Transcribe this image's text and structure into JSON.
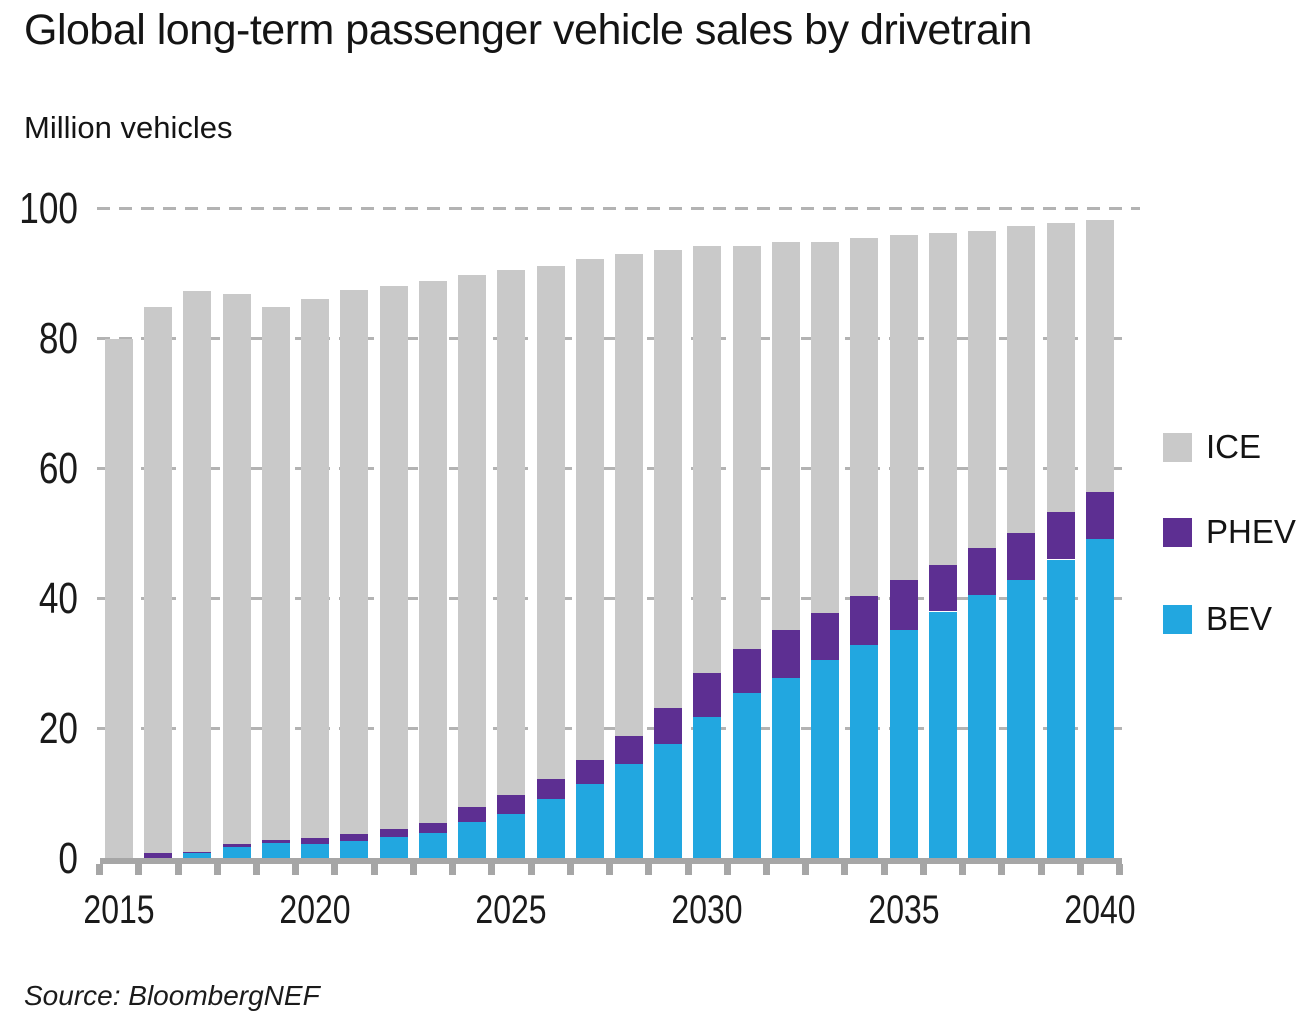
{
  "header": {
    "title": "Global long-term passenger vehicle sales by drivetrain",
    "unit_label": "Million vehicles"
  },
  "source": "Source: BloombergNEF",
  "chart_data": {
    "type": "bar",
    "subtype": "stacked-vertical",
    "title": "Global long-term passenger vehicle sales by drivetrain",
    "ylabel": "Million vehicles",
    "xlabel": "",
    "ylim": [
      0,
      100
    ],
    "yticks": [
      0,
      20,
      40,
      60,
      80,
      100
    ],
    "grid": "dashed-horizontal",
    "legend_position": "right",
    "categories": [
      2015,
      2016,
      2017,
      2018,
      2019,
      2020,
      2021,
      2022,
      2023,
      2024,
      2025,
      2026,
      2027,
      2028,
      2029,
      2030,
      2031,
      2032,
      2033,
      2034,
      2035,
      2036,
      2037,
      2038,
      2039,
      2040
    ],
    "xtick_labels": [
      2015,
      2020,
      2025,
      2030,
      2035,
      2040
    ],
    "series": [
      {
        "name": "BEV",
        "color": "#22a7e0",
        "stack_order": 0,
        "values": [
          0,
          0.1,
          0.9,
          1.8,
          2.4,
          2.3,
          2.75,
          3.3,
          3.9,
          5.6,
          6.9,
          9.1,
          11.5,
          14.5,
          17.6,
          21.8,
          25.4,
          27.8,
          30.6,
          32.8,
          35.2,
          38.0,
          40.5,
          42.8,
          46.0,
          49.1
        ]
      },
      {
        "name": "PHEV",
        "color": "#5d2f92",
        "stack_order": 1,
        "values": [
          0,
          0.75,
          0.15,
          0.45,
          0.5,
          0.85,
          1.0,
          1.2,
          1.5,
          2.3,
          2.8,
          3.1,
          3.6,
          4.4,
          5.5,
          6.7,
          6.8,
          7.4,
          7.2,
          7.6,
          7.6,
          7.2,
          7.2,
          7.3,
          7.3,
          7.3
        ]
      },
      {
        "name": "ICE",
        "color": "#c9c9c9",
        "stack_order": 2,
        "values": [
          80.0,
          84.0,
          86.3,
          84.6,
          82.0,
          83.0,
          83.75,
          83.6,
          83.4,
          81.9,
          80.8,
          78.9,
          77.1,
          74.1,
          70.5,
          65.7,
          62.0,
          59.7,
          57.1,
          55.0,
          53.2,
          51.0,
          48.9,
          47.2,
          44.5,
          41.9
        ]
      }
    ],
    "legend": [
      {
        "label": "ICE",
        "color": "#c9c9c9"
      },
      {
        "label": "PHEV",
        "color": "#5d2f92"
      },
      {
        "label": "BEV",
        "color": "#22a7e0"
      }
    ]
  },
  "style_colors": {
    "axis": "#a6a6a6",
    "gridline": "#b3b3b3",
    "text": "#141414"
  }
}
